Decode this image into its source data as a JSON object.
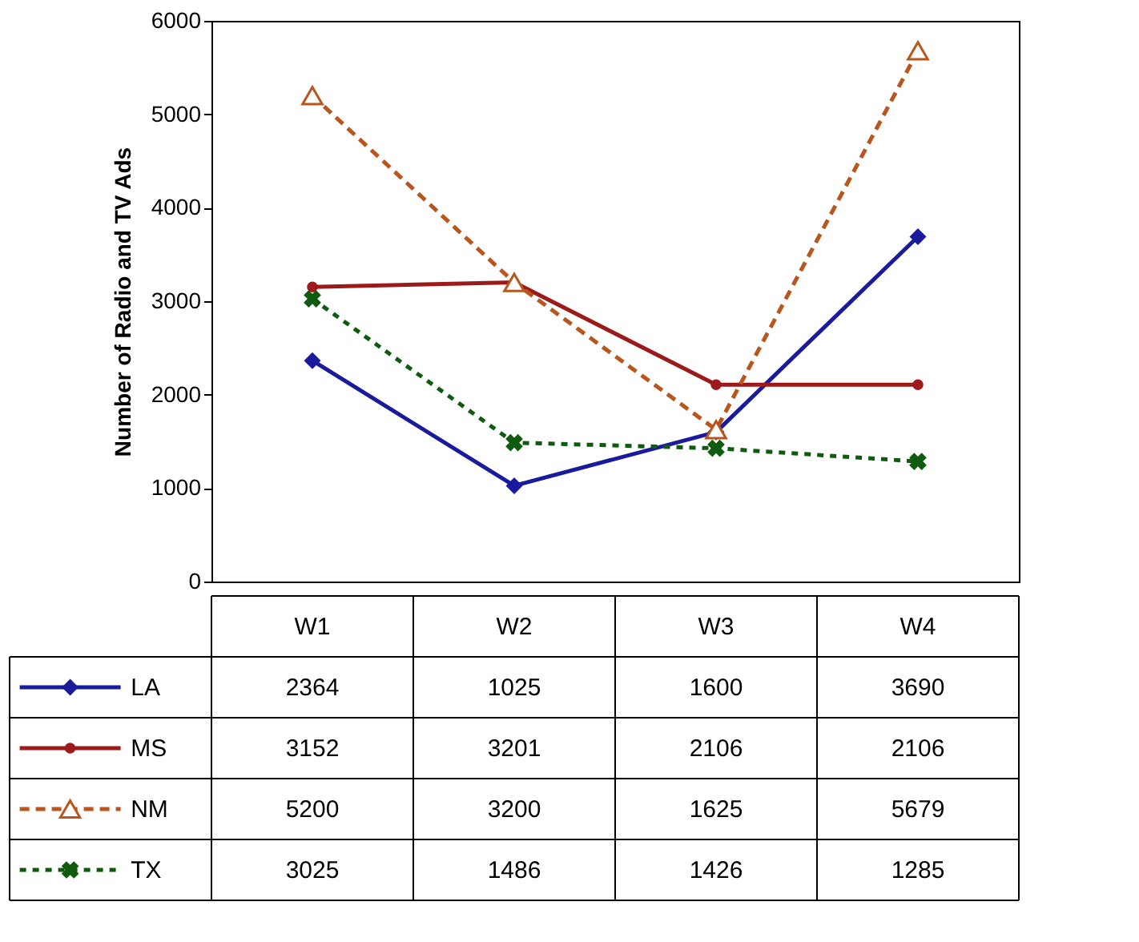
{
  "chart_data": {
    "type": "line",
    "ylabel": "Number of Radio and TV Ads",
    "categories": [
      "W1",
      "W2",
      "W3",
      "W4"
    ],
    "series": [
      {
        "name": "LA",
        "color": "#1a1a9c",
        "values": [
          2364,
          1025,
          1600,
          3690
        ],
        "marker": "diamond",
        "line_style": "solid"
      },
      {
        "name": "MS",
        "color": "#9c1a1a",
        "values": [
          3152,
          3201,
          2106,
          2106
        ],
        "marker": "circle",
        "line_style": "solid"
      },
      {
        "name": "NM",
        "color": "#b8561e",
        "values": [
          5200,
          3200,
          1625,
          5679
        ],
        "marker": "triangle",
        "line_style": "dashed"
      },
      {
        "name": "TX",
        "color": "#0f5a0f",
        "values": [
          3025,
          1486,
          1426,
          1285
        ],
        "marker": "cross",
        "line_style": "dotted"
      }
    ],
    "ylim": [
      0,
      6000
    ],
    "yticks": [
      0,
      1000,
      2000,
      3000,
      4000,
      5000,
      6000
    ],
    "grid": false,
    "legend": "bottom",
    "data_labels": true
  }
}
